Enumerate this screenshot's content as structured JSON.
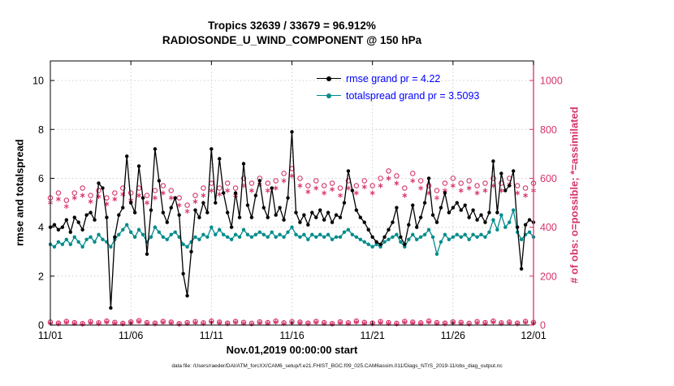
{
  "chart_data": {
    "type": "line",
    "title": "Tropics 32639 / 33679 = 96.912%",
    "subtitle": "RADIOSONDE_U_WIND_COMPONENT @ 150 hPa",
    "xlabel": "Nov.01,2019 00:00:00 start",
    "ylabel_left": "rmse and totalspread",
    "ylabel_right": "# of obs: o=possible; *=assimilated",
    "x_unit": "days since 2019-11-01 00:00Z",
    "xlim_days": [
      0,
      30
    ],
    "ylim_left": [
      0,
      10.8
    ],
    "ylim_right": [
      0,
      1080
    ],
    "x_tick_days": [
      0,
      5,
      10,
      15,
      20,
      25,
      30
    ],
    "x_tick_labels": [
      "11/01",
      "11/06",
      "11/11",
      "11/16",
      "11/21",
      "11/26",
      "12/01"
    ],
    "left_ticks": [
      0,
      2,
      4,
      6,
      8,
      10
    ],
    "right_ticks": [
      0,
      200,
      400,
      600,
      800,
      1000
    ],
    "grid": "dotted",
    "grid_color": "#c9c9c9",
    "left_axis_color": "#000000",
    "right_axis_color": "#d6336c",
    "series": [
      {
        "name": "possible_obs_o",
        "axis": "right",
        "marker": "open-circle",
        "line": false,
        "color": "#d6336c",
        "x_start": 0,
        "x_step": 0.5,
        "values": [
          520,
          540,
          510,
          540,
          560,
          530,
          550,
          520,
          540,
          560,
          540,
          560,
          530,
          550,
          570,
          550,
          520,
          490,
          530,
          560,
          580,
          560,
          580,
          560,
          600,
          580,
          600,
          580,
          590,
          620,
          640,
          600,
          570,
          590,
          570,
          580,
          560,
          590,
          570,
          590,
          570,
          600,
          630,
          610,
          560,
          620,
          590,
          570,
          550,
          580,
          600,
          580,
          590,
          570,
          580,
          600,
          580,
          600,
          570,
          560,
          580
        ]
      },
      {
        "name": "assimilated_obs_asterisk",
        "axis": "right",
        "marker": "asterisk",
        "line": false,
        "color": "#d6336c",
        "x_start": 0,
        "x_step": 0.5,
        "values": [
          500,
          515,
          485,
          520,
          530,
          505,
          525,
          495,
          515,
          535,
          510,
          530,
          500,
          520,
          540,
          520,
          490,
          465,
          505,
          530,
          550,
          535,
          550,
          530,
          570,
          550,
          575,
          550,
          560,
          590,
          610,
          570,
          545,
          560,
          540,
          555,
          530,
          560,
          540,
          565,
          540,
          570,
          600,
          580,
          530,
          590,
          560,
          540,
          520,
          550,
          570,
          550,
          560,
          540,
          550,
          570,
          550,
          575,
          540,
          530,
          550
        ]
      },
      {
        "name": "near_zero_counts_o",
        "axis": "right",
        "marker": "open-circle",
        "line": false,
        "color": "#d6336c",
        "x_start": 0,
        "x_step": 0.5,
        "values": [
          12,
          8,
          15,
          10,
          6,
          14,
          9,
          16,
          11,
          7,
          13,
          18,
          10,
          8,
          15,
          12,
          6,
          10,
          14,
          9,
          16,
          12,
          8,
          15,
          11,
          7,
          13,
          10,
          16,
          9,
          14,
          12,
          8,
          15,
          10,
          6,
          13,
          9,
          16,
          11,
          8,
          14,
          10,
          7,
          15,
          12,
          9,
          16,
          10,
          8,
          13,
          11,
          7,
          14,
          10,
          16,
          9,
          12,
          8,
          15,
          11
        ]
      },
      {
        "name": "near_zero_counts_asterisk",
        "axis": "right",
        "marker": "asterisk",
        "line": false,
        "color": "#d6336c",
        "x_start": 0,
        "x_step": 0.5,
        "values": [
          8,
          5,
          11,
          7,
          4,
          10,
          6,
          12,
          8,
          5,
          9,
          14,
          7,
          5,
          11,
          9,
          4,
          7,
          10,
          6,
          12,
          9,
          5,
          11,
          8,
          4,
          9,
          7,
          12,
          6,
          10,
          9,
          5,
          11,
          7,
          4,
          9,
          6,
          12,
          8,
          5,
          10,
          7,
          4,
          11,
          9,
          6,
          12,
          7,
          5,
          9,
          8,
          4,
          10,
          7,
          12,
          6,
          9,
          5,
          11,
          8
        ]
      },
      {
        "name": "totalspread",
        "axis": "left",
        "marker": "dot",
        "line": true,
        "color": "#008b8b",
        "x_start": 0,
        "x_step": 0.25,
        "values": [
          3.3,
          3.2,
          3.4,
          3.3,
          3.5,
          3.3,
          3.6,
          3.4,
          3.2,
          3.5,
          3.6,
          3.4,
          3.7,
          3.5,
          3.4,
          3.2,
          3.5,
          3.7,
          3.9,
          4.1,
          3.8,
          3.6,
          3.9,
          3.7,
          3.4,
          3.6,
          4.0,
          3.8,
          3.6,
          3.5,
          3.7,
          3.8,
          3.6,
          3.3,
          3.2,
          3.4,
          3.6,
          3.5,
          3.7,
          3.6,
          4.0,
          3.7,
          3.9,
          3.7,
          3.6,
          3.5,
          3.7,
          3.6,
          3.9,
          3.7,
          3.6,
          3.7,
          3.8,
          3.7,
          3.6,
          3.8,
          3.6,
          3.7,
          3.6,
          3.8,
          4.0,
          3.7,
          3.6,
          3.7,
          3.5,
          3.7,
          3.6,
          3.7,
          3.6,
          3.7,
          3.5,
          3.6,
          3.6,
          3.8,
          3.9,
          3.7,
          3.6,
          3.5,
          3.4,
          3.3,
          3.2,
          3.3,
          3.2,
          3.4,
          3.5,
          3.6,
          3.7,
          3.4,
          3.2,
          3.5,
          3.7,
          3.5,
          3.6,
          3.7,
          3.9,
          3.6,
          2.9,
          3.4,
          3.7,
          3.5,
          3.6,
          3.7,
          3.6,
          3.7,
          3.5,
          3.7,
          3.6,
          3.7,
          3.6,
          3.8,
          4.3,
          3.9,
          4.5,
          4.0,
          4.2,
          4.7,
          3.8,
          3.5,
          3.7,
          3.8,
          3.6
        ]
      },
      {
        "name": "rmse",
        "axis": "left",
        "marker": "dot",
        "line": true,
        "color": "#000000",
        "x_start": 0,
        "x_step": 0.25,
        "values": [
          4.0,
          4.1,
          3.9,
          4.0,
          4.3,
          3.8,
          4.4,
          4.2,
          3.9,
          4.5,
          4.6,
          4.3,
          5.8,
          5.6,
          4.4,
          0.7,
          3.6,
          4.5,
          4.8,
          6.9,
          5.0,
          4.6,
          6.5,
          5.2,
          2.9,
          4.7,
          7.2,
          5.9,
          4.6,
          4.2,
          4.8,
          5.2,
          4.5,
          2.1,
          1.2,
          3.0,
          4.7,
          4.4,
          5.0,
          4.6,
          7.2,
          5.0,
          6.8,
          5.4,
          4.6,
          4.0,
          5.4,
          4.4,
          6.6,
          4.9,
          4.4,
          5.3,
          5.9,
          4.8,
          4.4,
          5.6,
          4.5,
          4.8,
          4.3,
          5.2,
          7.9,
          4.6,
          4.2,
          4.5,
          4.1,
          4.6,
          4.4,
          4.7,
          4.3,
          4.6,
          4.2,
          4.5,
          4.4,
          5.0,
          6.3,
          5.5,
          4.7,
          4.4,
          4.2,
          3.9,
          3.6,
          3.4,
          3.3,
          3.6,
          3.9,
          4.2,
          4.8,
          3.6,
          3.3,
          4.1,
          4.9,
          4.0,
          4.4,
          5.0,
          6.0,
          4.5,
          4.2,
          4.8,
          5.4,
          4.6,
          4.8,
          5.0,
          4.7,
          4.9,
          4.4,
          4.7,
          4.3,
          4.5,
          4.2,
          4.6,
          6.7,
          4.6,
          6.2,
          5.5,
          5.7,
          6.3,
          4.0,
          2.3,
          4.1,
          4.3,
          4.2
        ]
      }
    ]
  },
  "legend": {
    "text_color": "#0000ff",
    "items": [
      {
        "label": "rmse grand pr = 4.22",
        "color": "#000000"
      },
      {
        "label": "totalspread grand pr = 3.5093",
        "color": "#008b8b"
      }
    ]
  },
  "caption": "data file: /Users/raeder/DAI/ATM_forcXX/CAM6_setup/f.e21.FHIST_BGC.f09_025.CAM6assim.011/Diags_NTrS_2019-11/obs_diag_output.nc"
}
